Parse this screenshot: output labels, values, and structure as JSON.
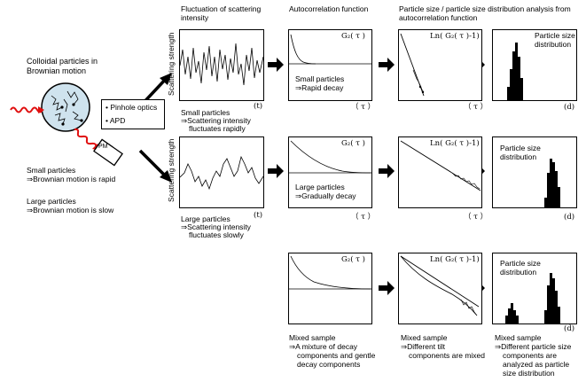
{
  "headers": {
    "fluctuation": "Fluctuation of scattering intensity",
    "autocorrelation": "Autocorrelation function",
    "analysis": "Particle size / particle size distribution analysis from autocorrelation function"
  },
  "left": {
    "title": "Colloidal particles in Brownian motion",
    "optics_items": [
      "Pinhole optics",
      "APD"
    ],
    "pm_label": "PM",
    "small_note_1": "Small particles",
    "small_note_2": "⇒Brownian motion is rapid",
    "large_note_1": "Large particles",
    "large_note_2": "⇒Brownian motion is slow"
  },
  "axis": {
    "scattering_strength": "Scattering strength",
    "t_label": "(t)",
    "tau_label": "（ τ ）",
    "d_label": "(d)",
    "g2_label": "G₂( τ )",
    "ln_label": "Ln( G₂( τ )-1)"
  },
  "rows": [
    {
      "fluct_caption": [
        "Small particles",
        "⇒Scattering intensity",
        "fluctuates rapidly"
      ],
      "auto_caption": [
        "Small particles",
        "⇒Rapid decay"
      ],
      "dist_label": [
        "Particle size",
        "distribution"
      ]
    },
    {
      "fluct_caption": [
        "Large particles",
        "⇒Scattering intensity",
        "fluctuates slowly"
      ],
      "auto_caption": [
        "Large particles",
        "⇒Gradually decay"
      ],
      "dist_label": [
        "Particle size",
        "distribution"
      ]
    },
    {
      "auto_caption": [
        "Mixed sample",
        "⇒A mixture of decay",
        "components and gentle",
        "decay components"
      ],
      "ln_caption": [
        "Mixed sample",
        "⇒Different tilt",
        "components are mixed"
      ],
      "dist_label": [
        "Particle size",
        "distribution"
      ],
      "dist_caption": [
        "Mixed sample",
        "⇒Different particle size",
        "components are",
        "analyzed as particle",
        "size distribution"
      ]
    }
  ],
  "colors": {
    "laser": "#e01010",
    "ink": "#000000"
  }
}
